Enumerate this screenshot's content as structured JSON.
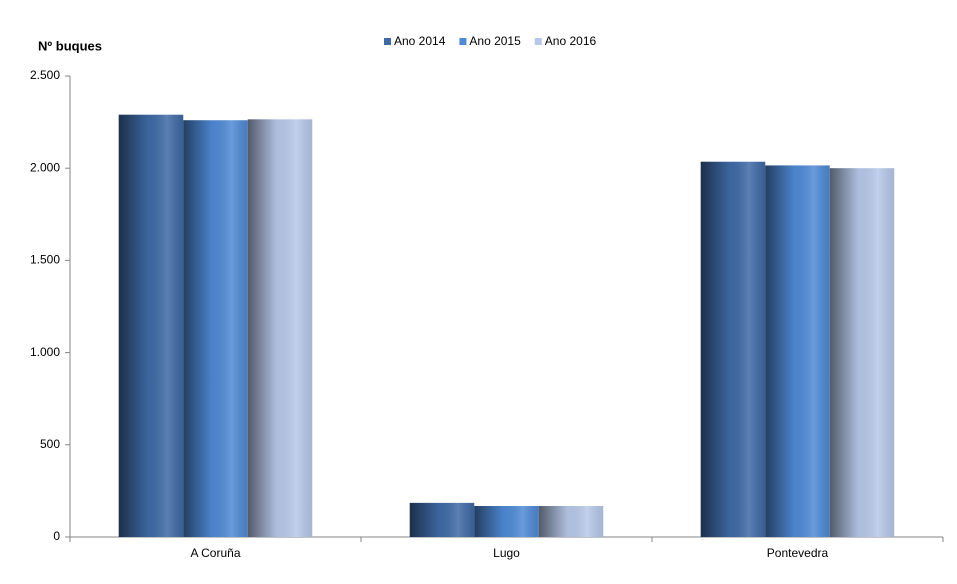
{
  "chart_data": {
    "type": "bar",
    "y_label": "Nº  buques",
    "categories": [
      "A Coruña",
      "Lugo",
      "Pontevedra"
    ],
    "series": [
      {
        "name": "Ano 2014",
        "color": "#3f6aa6",
        "values": [
          2290,
          185,
          2035
        ]
      },
      {
        "name": "Ano 2015",
        "color": "#4f8ad6",
        "values": [
          2260,
          168,
          2015
        ]
      },
      {
        "name": "Ano 2016",
        "color": "#b7c9ea",
        "values": [
          2265,
          168,
          2000
        ]
      }
    ],
    "ylim": [
      0,
      2500
    ],
    "yticks": [
      0,
      500,
      {
        "value": 1000,
        "label": "1.000"
      },
      {
        "value": 1500,
        "label": "1.500"
      },
      {
        "value": 2000,
        "label": "2.000"
      },
      {
        "value": 2500,
        "label": "2.500"
      }
    ],
    "legend": "top"
  }
}
